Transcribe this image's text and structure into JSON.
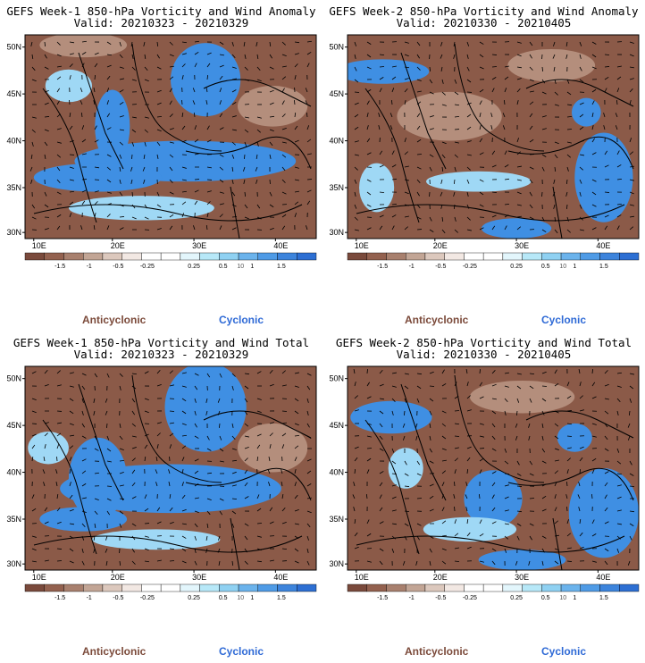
{
  "panels": [
    {
      "title": "GEFS Week-1 850-hPa Vorticity and Wind Anomaly",
      "valid": "Valid: 20210323 - 20210329",
      "anticyclonic_label": "Anticyclonic",
      "cyclonic_label": "Cyclonic"
    },
    {
      "title": "GEFS Week-2 850-hPa Vorticity and Wind Anomaly",
      "valid": "Valid: 20210330 - 20210405",
      "anticyclonic_label": "Anticyclonic",
      "cyclonic_label": "Cyclonic"
    },
    {
      "title": "GEFS Week-1 850-hPa Vorticity and Wind Total",
      "valid": "Valid: 20210323 - 20210329",
      "anticyclonic_label": "Anticyclonic",
      "cyclonic_label": "Cyclonic"
    },
    {
      "title": "GEFS Week-2 850-hPa Vorticity and Wind Total",
      "valid": "Valid: 20210330 - 20210405",
      "anticyclonic_label": "Anticyclonic",
      "cyclonic_label": "Cyclonic"
    }
  ],
  "map": {
    "lat_ticks": [
      "50N",
      "45N",
      "40N",
      "35N",
      "30N"
    ],
    "lon_ticks": [
      "10E",
      "20E",
      "30E",
      "40E"
    ]
  },
  "colorbar": {
    "labels": [
      "-1.5",
      "-1",
      "-0.5",
      "-0.25",
      "0.25",
      "0.5",
      "1",
      "1.5"
    ],
    "scale_note": "10",
    "colors": [
      "#7a4a3c",
      "#93614f",
      "#a8806e",
      "#c2a595",
      "#dcc8bd",
      "#f2e8e3",
      "#ffffff",
      "#ffffff",
      "#e3f6fc",
      "#b7e8f8",
      "#8fd1f2",
      "#6bb3ec",
      "#4f9be6",
      "#3d84dc",
      "#2d6fd3"
    ]
  },
  "colors": {
    "anticyclonic": "#7b4a3a",
    "cyclonic": "#2f6ad6",
    "brown": "#8b5a48",
    "tan": "#b48e7c",
    "blue": "#3f8fe3",
    "lightblue": "#9fd8f5"
  }
}
